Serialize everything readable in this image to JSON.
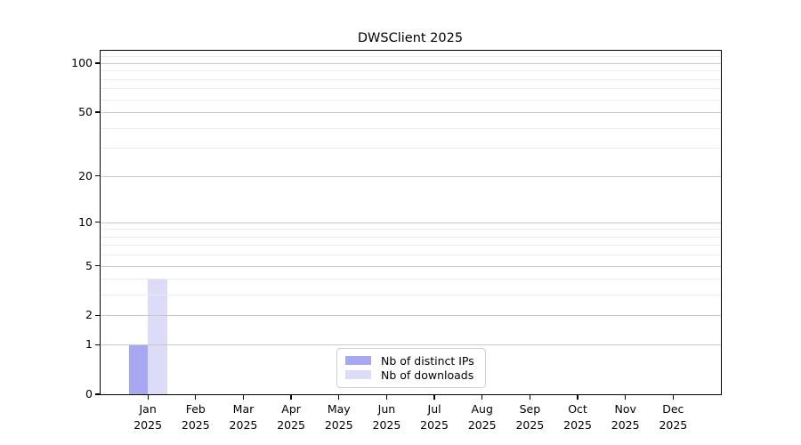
{
  "chart_data": {
    "type": "bar",
    "title": "DWSClient 2025",
    "categories": [
      "Jan",
      "Feb",
      "Mar",
      "Apr",
      "May",
      "Jun",
      "Jul",
      "Aug",
      "Sep",
      "Oct",
      "Nov",
      "Dec"
    ],
    "category_year_label": "2025",
    "series": [
      {
        "name": "Nb of distinct IPs",
        "color": "#a7a7f2",
        "values": [
          1,
          0,
          0,
          0,
          0,
          0,
          0,
          0,
          0,
          0,
          0,
          0
        ]
      },
      {
        "name": "Nb of downloads",
        "color": "#dcdcf8",
        "values": [
          4,
          0,
          0,
          0,
          0,
          0,
          0,
          0,
          0,
          0,
          0,
          0
        ]
      }
    ],
    "y_scale": "log1p",
    "ylim": [
      0,
      119
    ],
    "y_major_ticks": [
      0,
      1,
      2,
      5,
      10,
      20,
      50,
      100
    ],
    "y_minor_gridlines": [
      3,
      4,
      6,
      7,
      8,
      9,
      30,
      40,
      60,
      70,
      80,
      90,
      110
    ],
    "grid": true,
    "legend_position": "lower center",
    "colors": {
      "major_grid": "#c9c9c9",
      "minor_grid": "#ececec",
      "axis": "#000000",
      "text": "#000000",
      "background": "#ffffff"
    }
  }
}
